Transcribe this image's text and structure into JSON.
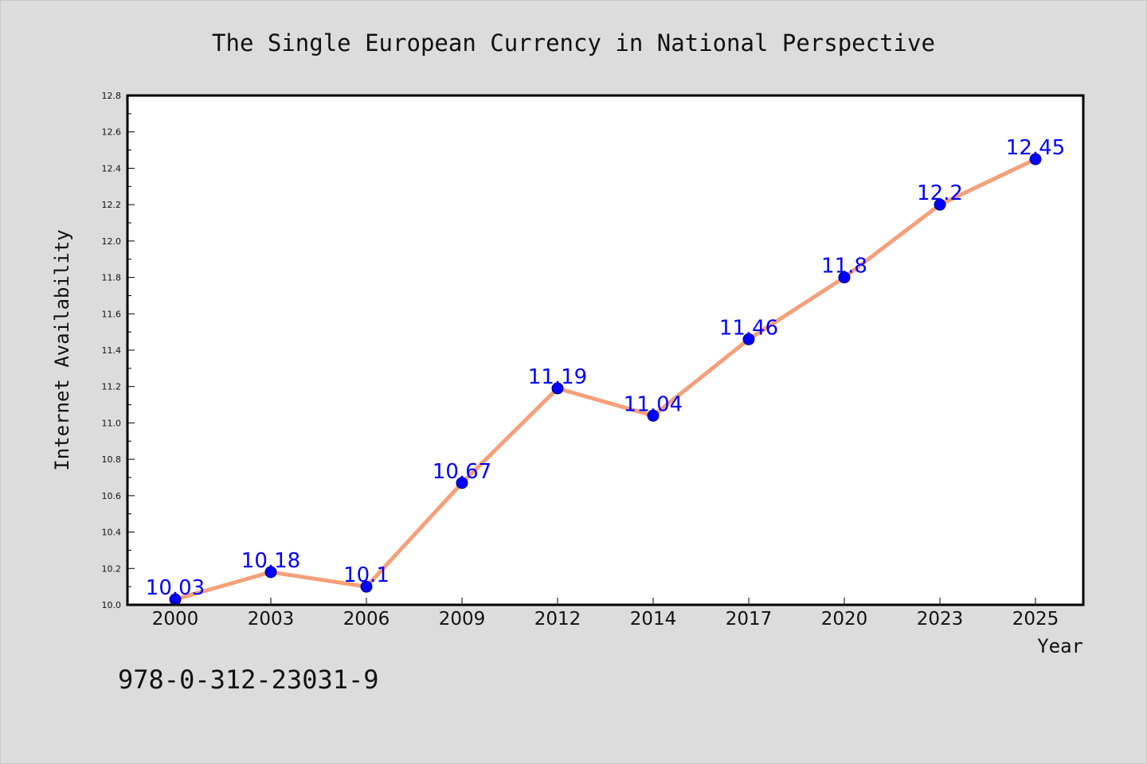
{
  "chart_data": {
    "type": "line",
    "title": "The Single European Currency in National Perspective",
    "xlabel": "Year",
    "ylabel": "Internet Availability",
    "categories": [
      "2000",
      "2003",
      "2006",
      "2009",
      "2012",
      "2014",
      "2017",
      "2020",
      "2023",
      "2025"
    ],
    "series": [
      {
        "values": [
          10.03,
          10.18,
          10.1,
          10.67,
          11.19,
          11.04,
          11.46,
          11.8,
          12.2,
          12.45
        ],
        "labels": [
          "10.03",
          "10.18",
          "10.1",
          "10.67",
          "11.19",
          "11.04",
          "11.46",
          "11.8",
          "12.2",
          "12.45"
        ],
        "line_color": "#f4a07a",
        "marker_color": "#0000ff"
      }
    ],
    "ylim": [
      10.0,
      12.8
    ],
    "yticks": [
      "10.0",
      "10.2",
      "10.4",
      "10.6",
      "10.8",
      "11.0",
      "11.2",
      "11.4",
      "11.6",
      "11.8",
      "12.0",
      "12.2",
      "12.4",
      "12.6",
      "12.8"
    ],
    "grid": false,
    "annotation": "978-0-312-23031-9"
  }
}
